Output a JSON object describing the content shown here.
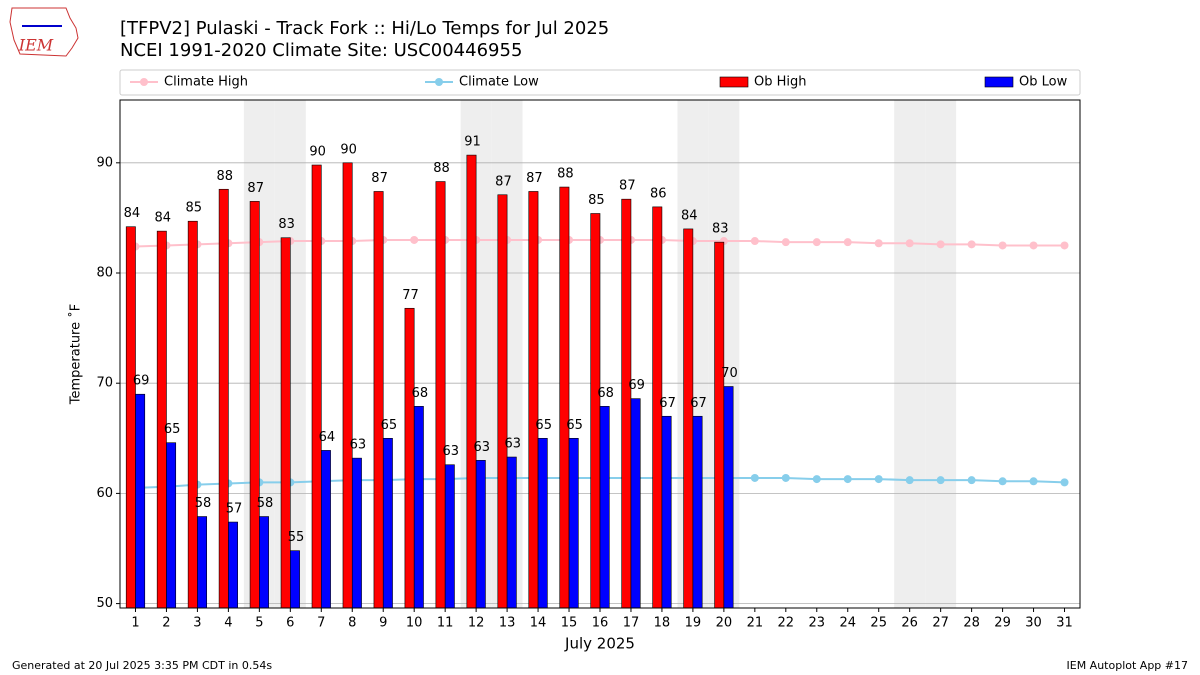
{
  "chart_data": {
    "type": "bar",
    "title": "[TFPV2] Pulaski - Track Fork :: Hi/Lo Temps for Jul 2025",
    "subtitle": "NCEI 1991-2020 Climate Site: USC00446955",
    "logo": "IEM",
    "xlabel": "July 2025",
    "ylabel": "Temperature ˚F",
    "footer_left": "Generated at 20 Jul 2025 3:35 PM CDT in 0.54s",
    "footer_right": "IEM Autoplot App #17",
    "x": [
      1,
      2,
      3,
      4,
      5,
      6,
      7,
      8,
      9,
      10,
      11,
      12,
      13,
      14,
      15,
      16,
      17,
      18,
      19,
      20,
      21,
      22,
      23,
      24,
      25,
      26,
      27,
      28,
      29,
      30,
      31
    ],
    "xticks": [
      1,
      2,
      3,
      4,
      5,
      6,
      7,
      8,
      9,
      10,
      11,
      12,
      13,
      14,
      15,
      16,
      17,
      18,
      19,
      20,
      21,
      22,
      23,
      24,
      25,
      26,
      27,
      28,
      29,
      30,
      31
    ],
    "xlim": [
      0.5,
      31.5
    ],
    "ylim": [
      49.6,
      95.7
    ],
    "yticks": [
      50,
      60,
      70,
      80,
      90
    ],
    "grid": true,
    "shaded_days": [
      5,
      6,
      12,
      13,
      19,
      20,
      26,
      27
    ],
    "series": [
      {
        "name": "Climate High",
        "kind": "line",
        "color": "#ffc0cb",
        "values": [
          82.4,
          82.5,
          82.6,
          82.7,
          82.8,
          82.9,
          82.9,
          82.9,
          83.0,
          83.0,
          83.0,
          83.0,
          83.0,
          83.0,
          83.0,
          83.0,
          83.0,
          83.0,
          82.9,
          82.9,
          82.9,
          82.8,
          82.8,
          82.8,
          82.7,
          82.7,
          82.6,
          82.6,
          82.5,
          82.5,
          82.5
        ]
      },
      {
        "name": "Climate Low",
        "kind": "line",
        "color": "#87ceeb",
        "values": [
          60.5,
          60.6,
          60.8,
          60.9,
          61.0,
          61.0,
          61.1,
          61.2,
          61.2,
          61.3,
          61.3,
          61.4,
          61.4,
          61.4,
          61.4,
          61.4,
          61.4,
          61.4,
          61.4,
          61.4,
          61.4,
          61.4,
          61.3,
          61.3,
          61.3,
          61.2,
          61.2,
          61.2,
          61.1,
          61.1,
          61.0
        ]
      },
      {
        "name": "Ob High",
        "kind": "bar",
        "offset": -1,
        "color": "#ff0000",
        "values": [
          84.2,
          83.8,
          84.7,
          87.6,
          86.5,
          83.2,
          89.8,
          90.0,
          87.4,
          76.8,
          88.3,
          90.7,
          87.1,
          87.4,
          87.8,
          85.4,
          86.7,
          86.0,
          84.0,
          82.8,
          null,
          null,
          null,
          null,
          null,
          null,
          null,
          null,
          null,
          null,
          null
        ],
        "value_labels": [
          "84",
          "84",
          "85",
          "88",
          "87",
          "83",
          "90",
          "90",
          "87",
          "77",
          "88",
          "91",
          "87",
          "87",
          "88",
          "85",
          "87",
          "86",
          "84",
          "83",
          null,
          null,
          null,
          null,
          null,
          null,
          null,
          null,
          null,
          null,
          null
        ]
      },
      {
        "name": "Ob Low",
        "kind": "bar",
        "offset": 0,
        "color": "#0000ff",
        "values": [
          69.0,
          64.6,
          57.9,
          57.4,
          57.9,
          54.8,
          63.9,
          63.2,
          65.0,
          67.9,
          62.6,
          63.0,
          63.3,
          65.0,
          65.0,
          67.9,
          68.6,
          67.0,
          67.0,
          69.7,
          null,
          null,
          null,
          null,
          null,
          null,
          null,
          null,
          null,
          null,
          null
        ],
        "value_labels": [
          "69",
          "65",
          "58",
          "57",
          "58",
          "55",
          "64",
          "63",
          "65",
          "68",
          "63",
          "63",
          "63",
          "65",
          "65",
          "68",
          "69",
          "67",
          "67",
          "70",
          null,
          null,
          null,
          null,
          null,
          null,
          null,
          null,
          null,
          null,
          null
        ]
      }
    ]
  }
}
